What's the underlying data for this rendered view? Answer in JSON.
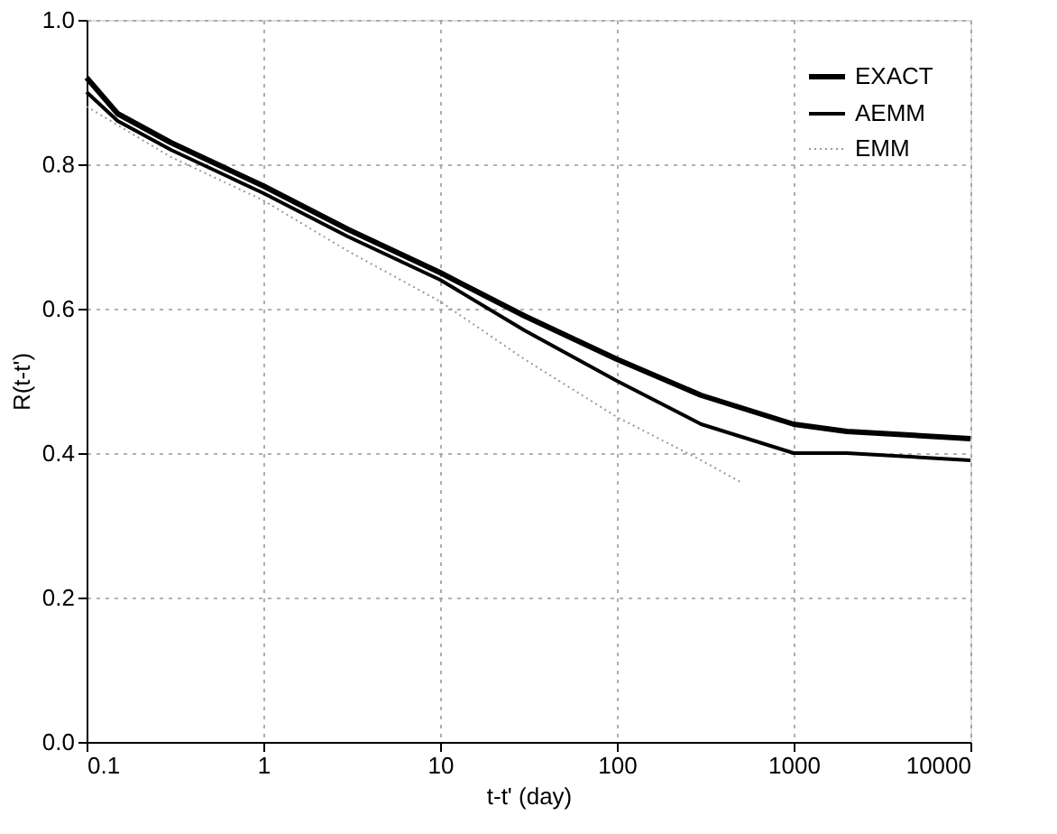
{
  "chart_data": {
    "type": "line",
    "xlabel": "t-t' (day)",
    "ylabel": "R(t-t')",
    "log": "x",
    "xlim": [
      0.1,
      10000
    ],
    "xticks": [
      0.1,
      1,
      10,
      100,
      1000,
      10000
    ],
    "ylim": [
      0,
      1.0
    ],
    "yticks": [
      {
        "value": 0,
        "label": "0.0"
      },
      0.2,
      0.4,
      0.6,
      0.8,
      {
        "value": 1,
        "label": "1.0"
      }
    ],
    "grid": true,
    "legend": "top right",
    "marker": "none",
    "series": [
      {
        "name": "EXACT",
        "color": "#000000",
        "line_style": "solid",
        "x": [
          0.1,
          0.15,
          0.3,
          1,
          3,
          10,
          30,
          100,
          300,
          1000,
          2000,
          10000
        ],
        "values": [
          0.92,
          0.87,
          0.83,
          0.77,
          0.71,
          0.65,
          0.59,
          0.53,
          0.48,
          0.44,
          0.43,
          0.42
        ]
      },
      {
        "name": "AEMM",
        "color": "#000000",
        "line_style": "solid",
        "x": [
          0.1,
          0.15,
          0.3,
          1,
          3,
          10,
          30,
          100,
          300,
          1000,
          2000,
          10000
        ],
        "values": [
          0.9,
          0.86,
          0.82,
          0.76,
          0.7,
          0.64,
          0.57,
          0.5,
          0.44,
          0.4,
          0.4,
          0.39
        ]
      },
      {
        "name": "EMM",
        "color": "#999999",
        "line_style": "dotted",
        "x": [
          0.1,
          0.3,
          1,
          3,
          10,
          30,
          100,
          300,
          500
        ],
        "values": [
          0.88,
          0.81,
          0.75,
          0.68,
          0.61,
          0.53,
          0.45,
          0.39,
          0.36
        ]
      }
    ]
  }
}
